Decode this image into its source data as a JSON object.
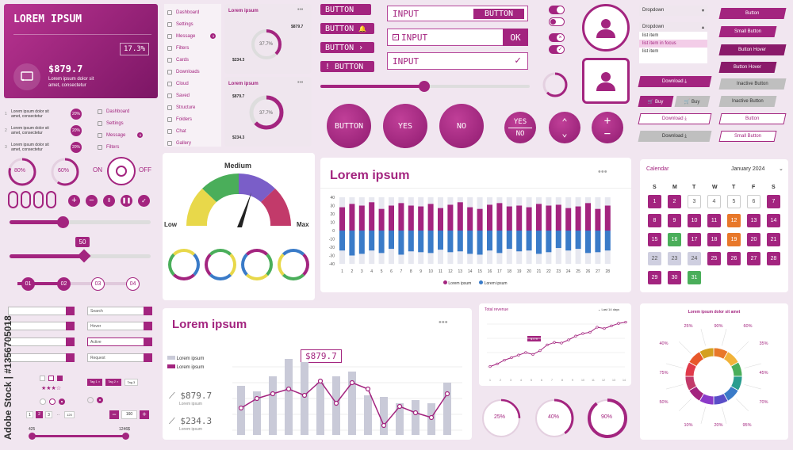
{
  "hero": {
    "title": "LOREM IPSUM",
    "percent": "17.3%",
    "amount": "$879.7",
    "text1": "Lorem ipsum dolor sit",
    "text2": "amet, consectetur"
  },
  "stats_list": [
    {
      "num": "1",
      "line1": "Lorem ipsum dolor sit",
      "line2": "amet, consectetur",
      "pct": "20%"
    },
    {
      "num": "2",
      "line1": "Lorem ipsum dolor sit",
      "line2": "amet, consectetur",
      "pct": "20%"
    },
    {
      "num": "3",
      "line1": "Lorem ipsum dolor sit",
      "line2": "amet, consectetur",
      "pct": "20%"
    }
  ],
  "mini_menu": [
    "Dashboard",
    "Settings",
    "Message",
    "Filters"
  ],
  "mini_menu_badge": "5",
  "sidebar": {
    "items": [
      "Dashboard",
      "Settings",
      "Message",
      "Filters",
      "Cards",
      "Downloads",
      "Cloud",
      "Saved",
      "Structure",
      "Folders",
      "Chat",
      "Gallery"
    ],
    "badge": "3"
  },
  "widget1": {
    "title": "Lorem ipsum",
    "dots": "•••",
    "v1": "$879.7",
    "pct": "37.7%",
    "v2": "$234.3"
  },
  "widget2": {
    "title": "Lorem ipsum",
    "dots": "•••",
    "v1": "$879.7",
    "pct": "37.7%",
    "v2": "$234.3"
  },
  "buttons": {
    "button": "BUTTON",
    "input": "INPUT",
    "ok": "OK",
    "yes": "YES",
    "no": "NO"
  },
  "circle_buttons": [
    "BUTTON",
    "YES",
    "NO"
  ],
  "progress_rings": [
    "80%",
    "60%"
  ],
  "toggle": {
    "on": "ON",
    "off": "OFF"
  },
  "slider_value": "50",
  "steps": [
    "01",
    "02",
    "03",
    "04"
  ],
  "gauge": {
    "medium": "Medium",
    "low": "Low",
    "max": "Max"
  },
  "bar_chart": {
    "title": "Lorem ipsum",
    "dots": "•••",
    "legend": [
      "Lorem ipsum",
      "Lorem ipsum"
    ],
    "colors": [
      "#a3247f",
      "#3a7bc8"
    ],
    "yticks": [
      "40",
      "30",
      "20",
      "10",
      "0",
      "-10",
      "-20",
      "-30",
      "-40"
    ],
    "xticks": [
      "1",
      "2",
      "3",
      "4",
      "5",
      "6",
      "7",
      "8",
      "9",
      "10",
      "11",
      "12",
      "13",
      "14",
      "15",
      "16",
      "17",
      "18",
      "19",
      "20",
      "21",
      "22",
      "23",
      "24",
      "25",
      "26",
      "27",
      "28"
    ]
  },
  "dropdowns": {
    "head1": "Dropdown",
    "head2": "Dropdown",
    "items": [
      "list item",
      "list item in focus",
      "list item"
    ]
  },
  "right_buttons": {
    "button": "Button",
    "small_button": "Small Button",
    "button_hover": "Button Hover",
    "download": "Download",
    "inactive_button": "Inactive Button",
    "buy": "Buy"
  },
  "calendar": {
    "title": "Calendar",
    "month": "January 2024",
    "weekdays": [
      "S",
      "M",
      "T",
      "W",
      "T",
      "F",
      "S"
    ],
    "days": [
      "1",
      "2",
      "3",
      "4",
      "5",
      "6",
      "7",
      "8",
      "9",
      "10",
      "11",
      "12",
      "13",
      "14",
      "15",
      "16",
      "17",
      "18",
      "19",
      "20",
      "21",
      "22",
      "23",
      "24",
      "25",
      "26",
      "27",
      "28",
      "29",
      "30",
      "31"
    ]
  },
  "fields": {
    "search": "Search",
    "hover": "Hover",
    "active": "Active",
    "request": "Request"
  },
  "tags": [
    "Tag 1",
    "Tag 2",
    "Tag 3"
  ],
  "pagination": [
    "1",
    "2",
    "3",
    "..",
    "120"
  ],
  "stepper_value": "160",
  "range": {
    "min": "425",
    "max": "1246$"
  },
  "combo_chart": {
    "title": "Lorem ipsum",
    "dots": "•••",
    "tooltip": "$879.7",
    "legend": [
      "Lorem ipsum",
      "Lorem ipsum"
    ],
    "v1": "$879.7",
    "v1_label": "Lorem ipsum",
    "v2": "$234.3",
    "v2_label": "Lorem ipsum"
  },
  "line_chart": {
    "title": "Total revenue",
    "filter": "Last 14 days",
    "tooltip": "$779",
    "xticks": [
      "1",
      "2",
      "3",
      "4",
      "5",
      "6",
      "7",
      "8",
      "9",
      "10",
      "11",
      "12",
      "13",
      "14"
    ]
  },
  "rings_bottom": [
    "25%",
    "40%",
    "90%"
  ],
  "donut": {
    "title": "Lorem ipsum dolor sit amet",
    "labels": [
      "25%",
      "90%",
      "60%",
      "35%",
      "45%",
      "70%",
      "95%",
      "20%",
      "10%",
      "50%",
      "75%",
      "40%"
    ]
  },
  "watermark": "Adobe Stock | #1356705018"
}
